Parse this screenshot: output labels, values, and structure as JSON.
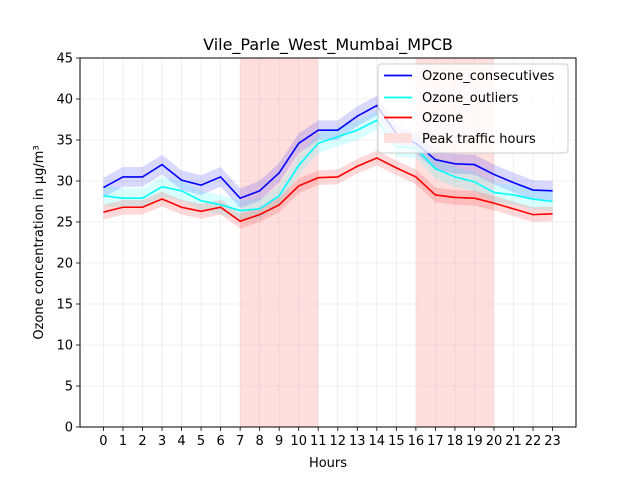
{
  "chart_data": {
    "type": "line",
    "title": "Vile_Parle_West_Mumbai_MPCB",
    "xlabel": "Hours",
    "ylabel": "Ozone concentration in µg/m³",
    "x": [
      0,
      1,
      2,
      3,
      4,
      5,
      6,
      7,
      8,
      9,
      10,
      11,
      12,
      13,
      14,
      15,
      16,
      17,
      18,
      19,
      20,
      21,
      22,
      23
    ],
    "xlim": [
      -1.2,
      24.2
    ],
    "ylim": [
      0,
      45
    ],
    "yticks": [
      0,
      5,
      10,
      15,
      20,
      25,
      30,
      35,
      40,
      45
    ],
    "grid": true,
    "legend_position": "top-right",
    "series": [
      {
        "name": "Ozone_consecutives",
        "color": "#0000ff",
        "values": [
          29.2,
          30.5,
          30.5,
          32.0,
          30.1,
          29.5,
          30.5,
          27.9,
          28.8,
          31.0,
          34.6,
          36.2,
          36.2,
          37.9,
          39.2,
          35.8,
          34.6,
          32.6,
          32.1,
          32.0,
          30.8,
          29.8,
          28.9,
          28.8
        ],
        "band": 1.2
      },
      {
        "name": "Ozone_outliers",
        "color": "#00ffff",
        "values": [
          28.2,
          27.9,
          27.9,
          29.3,
          28.8,
          27.6,
          27.1,
          26.4,
          26.6,
          28.2,
          31.9,
          34.6,
          35.4,
          36.2,
          37.4,
          34.2,
          34.0,
          31.5,
          30.5,
          29.9,
          28.6,
          28.3,
          27.8,
          27.5
        ],
        "band": 1.2
      },
      {
        "name": "Ozone",
        "color": "#ff0000",
        "values": [
          26.2,
          26.8,
          26.8,
          27.8,
          26.8,
          26.3,
          26.8,
          25.1,
          25.9,
          27.1,
          29.4,
          30.4,
          30.5,
          31.8,
          32.8,
          31.6,
          30.5,
          28.3,
          28.0,
          27.9,
          27.3,
          26.6,
          25.9,
          26.0
        ],
        "band": 0.9
      }
    ],
    "shaded_regions": [
      {
        "name": "Peak traffic hours",
        "start": 7,
        "end": 11,
        "color": "#ffdede"
      },
      {
        "start": 16,
        "end": 20,
        "color": "#ffdede"
      }
    ]
  }
}
